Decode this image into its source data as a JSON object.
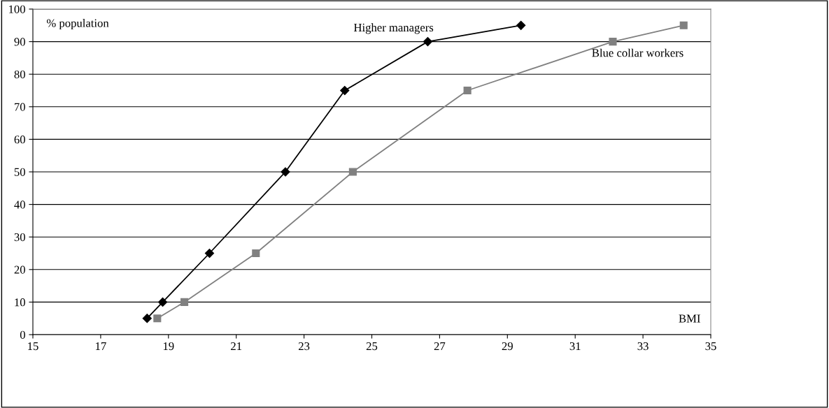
{
  "chart_data": {
    "type": "line",
    "xlabel": "BMI",
    "ylabel": "% population",
    "xlim": [
      15,
      35
    ],
    "xticks": [
      15,
      17,
      19,
      21,
      23,
      25,
      27,
      29,
      31,
      33,
      35
    ],
    "ylim": [
      0,
      100
    ],
    "yticks": [
      0,
      10,
      20,
      30,
      40,
      50,
      60,
      70,
      80,
      90,
      100
    ],
    "grid": "y",
    "series": [
      {
        "name": "Higher managers",
        "color": "#000000",
        "marker": "diamond",
        "x": [
          18.37,
          18.83,
          20.21,
          22.45,
          24.2,
          26.65,
          29.4
        ],
        "values": [
          5,
          10,
          25,
          50,
          75,
          90,
          95
        ]
      },
      {
        "name": "Blue collar workers",
        "color": "#808080",
        "marker": "square",
        "x": [
          18.67,
          19.47,
          21.58,
          24.44,
          27.82,
          32.11,
          34.2
        ],
        "values": [
          5,
          10,
          25,
          50,
          75,
          90,
          95
        ]
      }
    ]
  }
}
